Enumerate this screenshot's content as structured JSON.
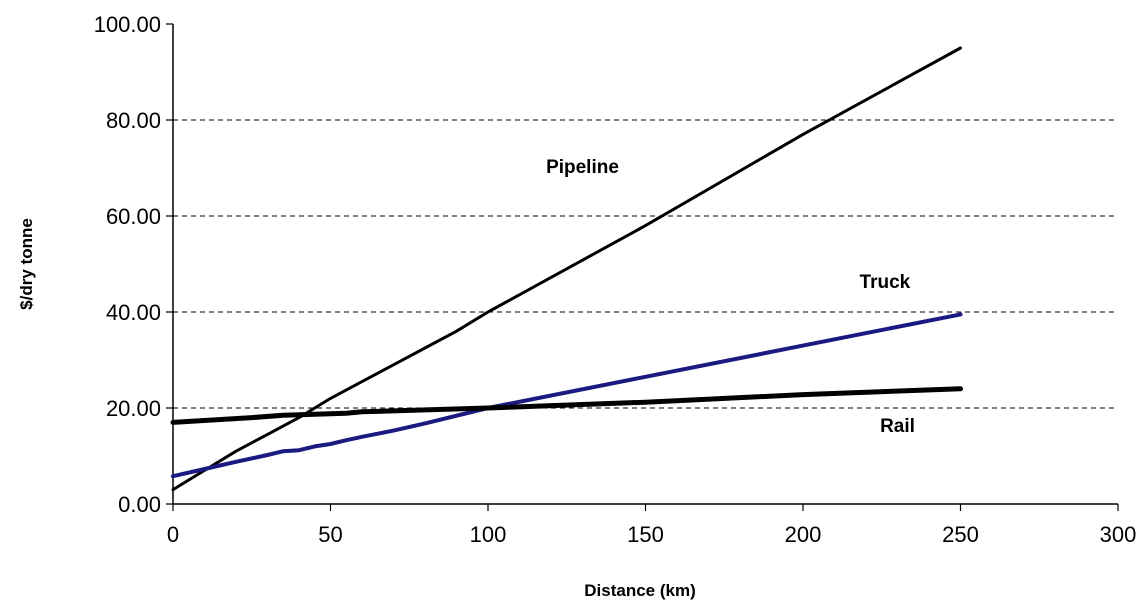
{
  "chart_data": {
    "type": "line",
    "xlabel": "Distance (km)",
    "ylabel": "$/dry tonne",
    "xlim": [
      0,
      300
    ],
    "ylim": [
      0,
      100
    ],
    "x_ticks": [
      "0",
      "50",
      "100",
      "150",
      "200",
      "250",
      "300"
    ],
    "y_ticks": [
      "0.00",
      "20.00",
      "40.00",
      "60.00",
      "80.00",
      "100.00"
    ],
    "grid": "horizontal dashed",
    "series": [
      {
        "name": "Pipeline",
        "color": "#000000",
        "x": [
          0,
          10,
          20,
          30,
          40,
          50,
          60,
          70,
          80,
          90,
          100,
          150,
          200,
          250
        ],
        "y": [
          3,
          7,
          11,
          14.5,
          18,
          22,
          25.5,
          29,
          32.5,
          36,
          40,
          58,
          77,
          95
        ]
      },
      {
        "name": "Truck",
        "color": "#1a1a80",
        "x": [
          0,
          10,
          20,
          30,
          35,
          40,
          45,
          50,
          55,
          60,
          70,
          80,
          100,
          150,
          200,
          250
        ],
        "y": [
          5.8,
          7.3,
          8.8,
          10.2,
          11,
          11.2,
          12,
          12.5,
          13.3,
          14,
          15.3,
          16.8,
          20,
          26.5,
          33,
          39.5
        ]
      },
      {
        "name": "Rail",
        "color": "#000000",
        "x": [
          0,
          25,
          35,
          50,
          55,
          60,
          75,
          100,
          150,
          200,
          250
        ],
        "y": [
          17,
          18,
          18.5,
          18.8,
          18.9,
          19.2,
          19.5,
          20,
          21.2,
          22.8,
          24
        ]
      }
    ]
  }
}
